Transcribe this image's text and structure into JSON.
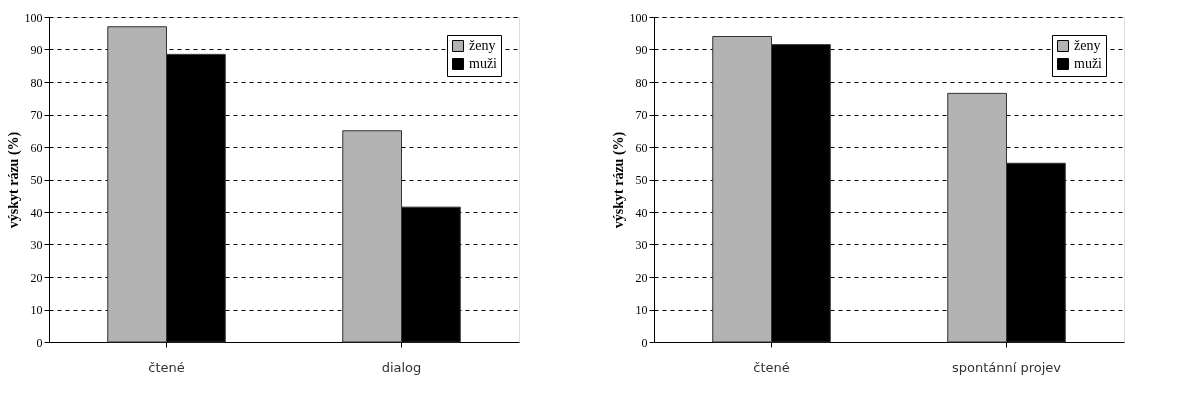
{
  "chart_data": [
    {
      "type": "bar",
      "ylabel": "výskyt rázu (%)",
      "categories": [
        "čtené",
        "dialog"
      ],
      "series": [
        {
          "name": "ženy",
          "color": "#b3b3b3",
          "values": [
            97,
            65
          ]
        },
        {
          "name": "muži",
          "color": "#000000",
          "values": [
            88.5,
            41.5
          ]
        }
      ],
      "ylim": [
        0,
        100
      ],
      "yticks": [
        0,
        10,
        20,
        30,
        40,
        50,
        60,
        70,
        80,
        90,
        100
      ],
      "grid": "y",
      "legend": "top right"
    },
    {
      "type": "bar",
      "ylabel": "výskyt rázu (%)",
      "categories": [
        "čtené",
        "spontánní projev"
      ],
      "series": [
        {
          "name": "ženy",
          "color": "#b3b3b3",
          "values": [
            94,
            76.5
          ]
        },
        {
          "name": "muži",
          "color": "#000000",
          "values": [
            91.5,
            55
          ]
        }
      ],
      "ylim": [
        0,
        100
      ],
      "yticks": [
        0,
        10,
        20,
        30,
        40,
        50,
        60,
        70,
        80,
        90,
        100
      ],
      "grid": "y",
      "legend": "top right"
    }
  ]
}
